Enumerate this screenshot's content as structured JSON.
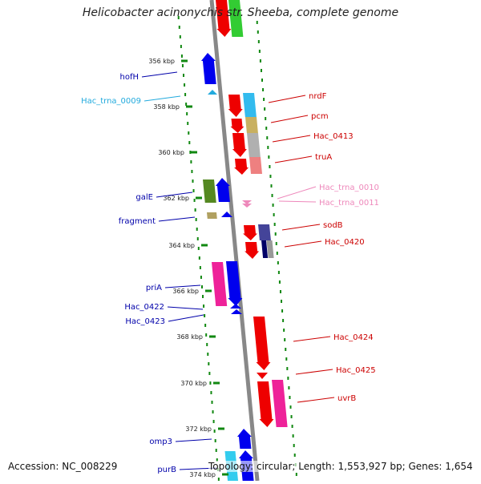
{
  "title": "Helicobacter acinonychis str. Sheeba, complete genome",
  "footer": {
    "accession": "Accession: NC_008229",
    "topology": "Topology: circular; Length: 1,553,927 bp; Genes: 1,654"
  },
  "colors": {
    "backbone": "#888888",
    "tick": "#118811",
    "left_label": "#0000aa",
    "right_label": "#cc0000",
    "trna_left": "#22aadd",
    "trna_right": "#ee88bb"
  },
  "ticks": [
    {
      "label": "356 kbp"
    },
    {
      "label": "358 kbp"
    },
    {
      "label": "360 kbp"
    },
    {
      "label": "362 kbp"
    },
    {
      "label": "364 kbp"
    },
    {
      "label": "366 kbp"
    },
    {
      "label": "368 kbp"
    },
    {
      "label": "370 kbp"
    },
    {
      "label": "372 kbp"
    },
    {
      "label": "374 kbp"
    }
  ],
  "labels_left": [
    {
      "name": "hofH"
    },
    {
      "name": "Hac_trna_0009"
    },
    {
      "name": "galE"
    },
    {
      "name": "fragment"
    },
    {
      "name": "priA"
    },
    {
      "name": "Hac_0422"
    },
    {
      "name": "Hac_0423"
    },
    {
      "name": "omp3"
    },
    {
      "name": "purB"
    }
  ],
  "labels_right": [
    {
      "name": "nrdF"
    },
    {
      "name": "pcm"
    },
    {
      "name": "Hac_0413"
    },
    {
      "name": "truA"
    },
    {
      "name": "Hac_trna_0010"
    },
    {
      "name": "Hac_trna_0011"
    },
    {
      "name": "sodB"
    },
    {
      "name": "Hac_0420"
    },
    {
      "name": "Hac_0424"
    },
    {
      "name": "Hac_0425"
    },
    {
      "name": "uvrB"
    }
  ]
}
